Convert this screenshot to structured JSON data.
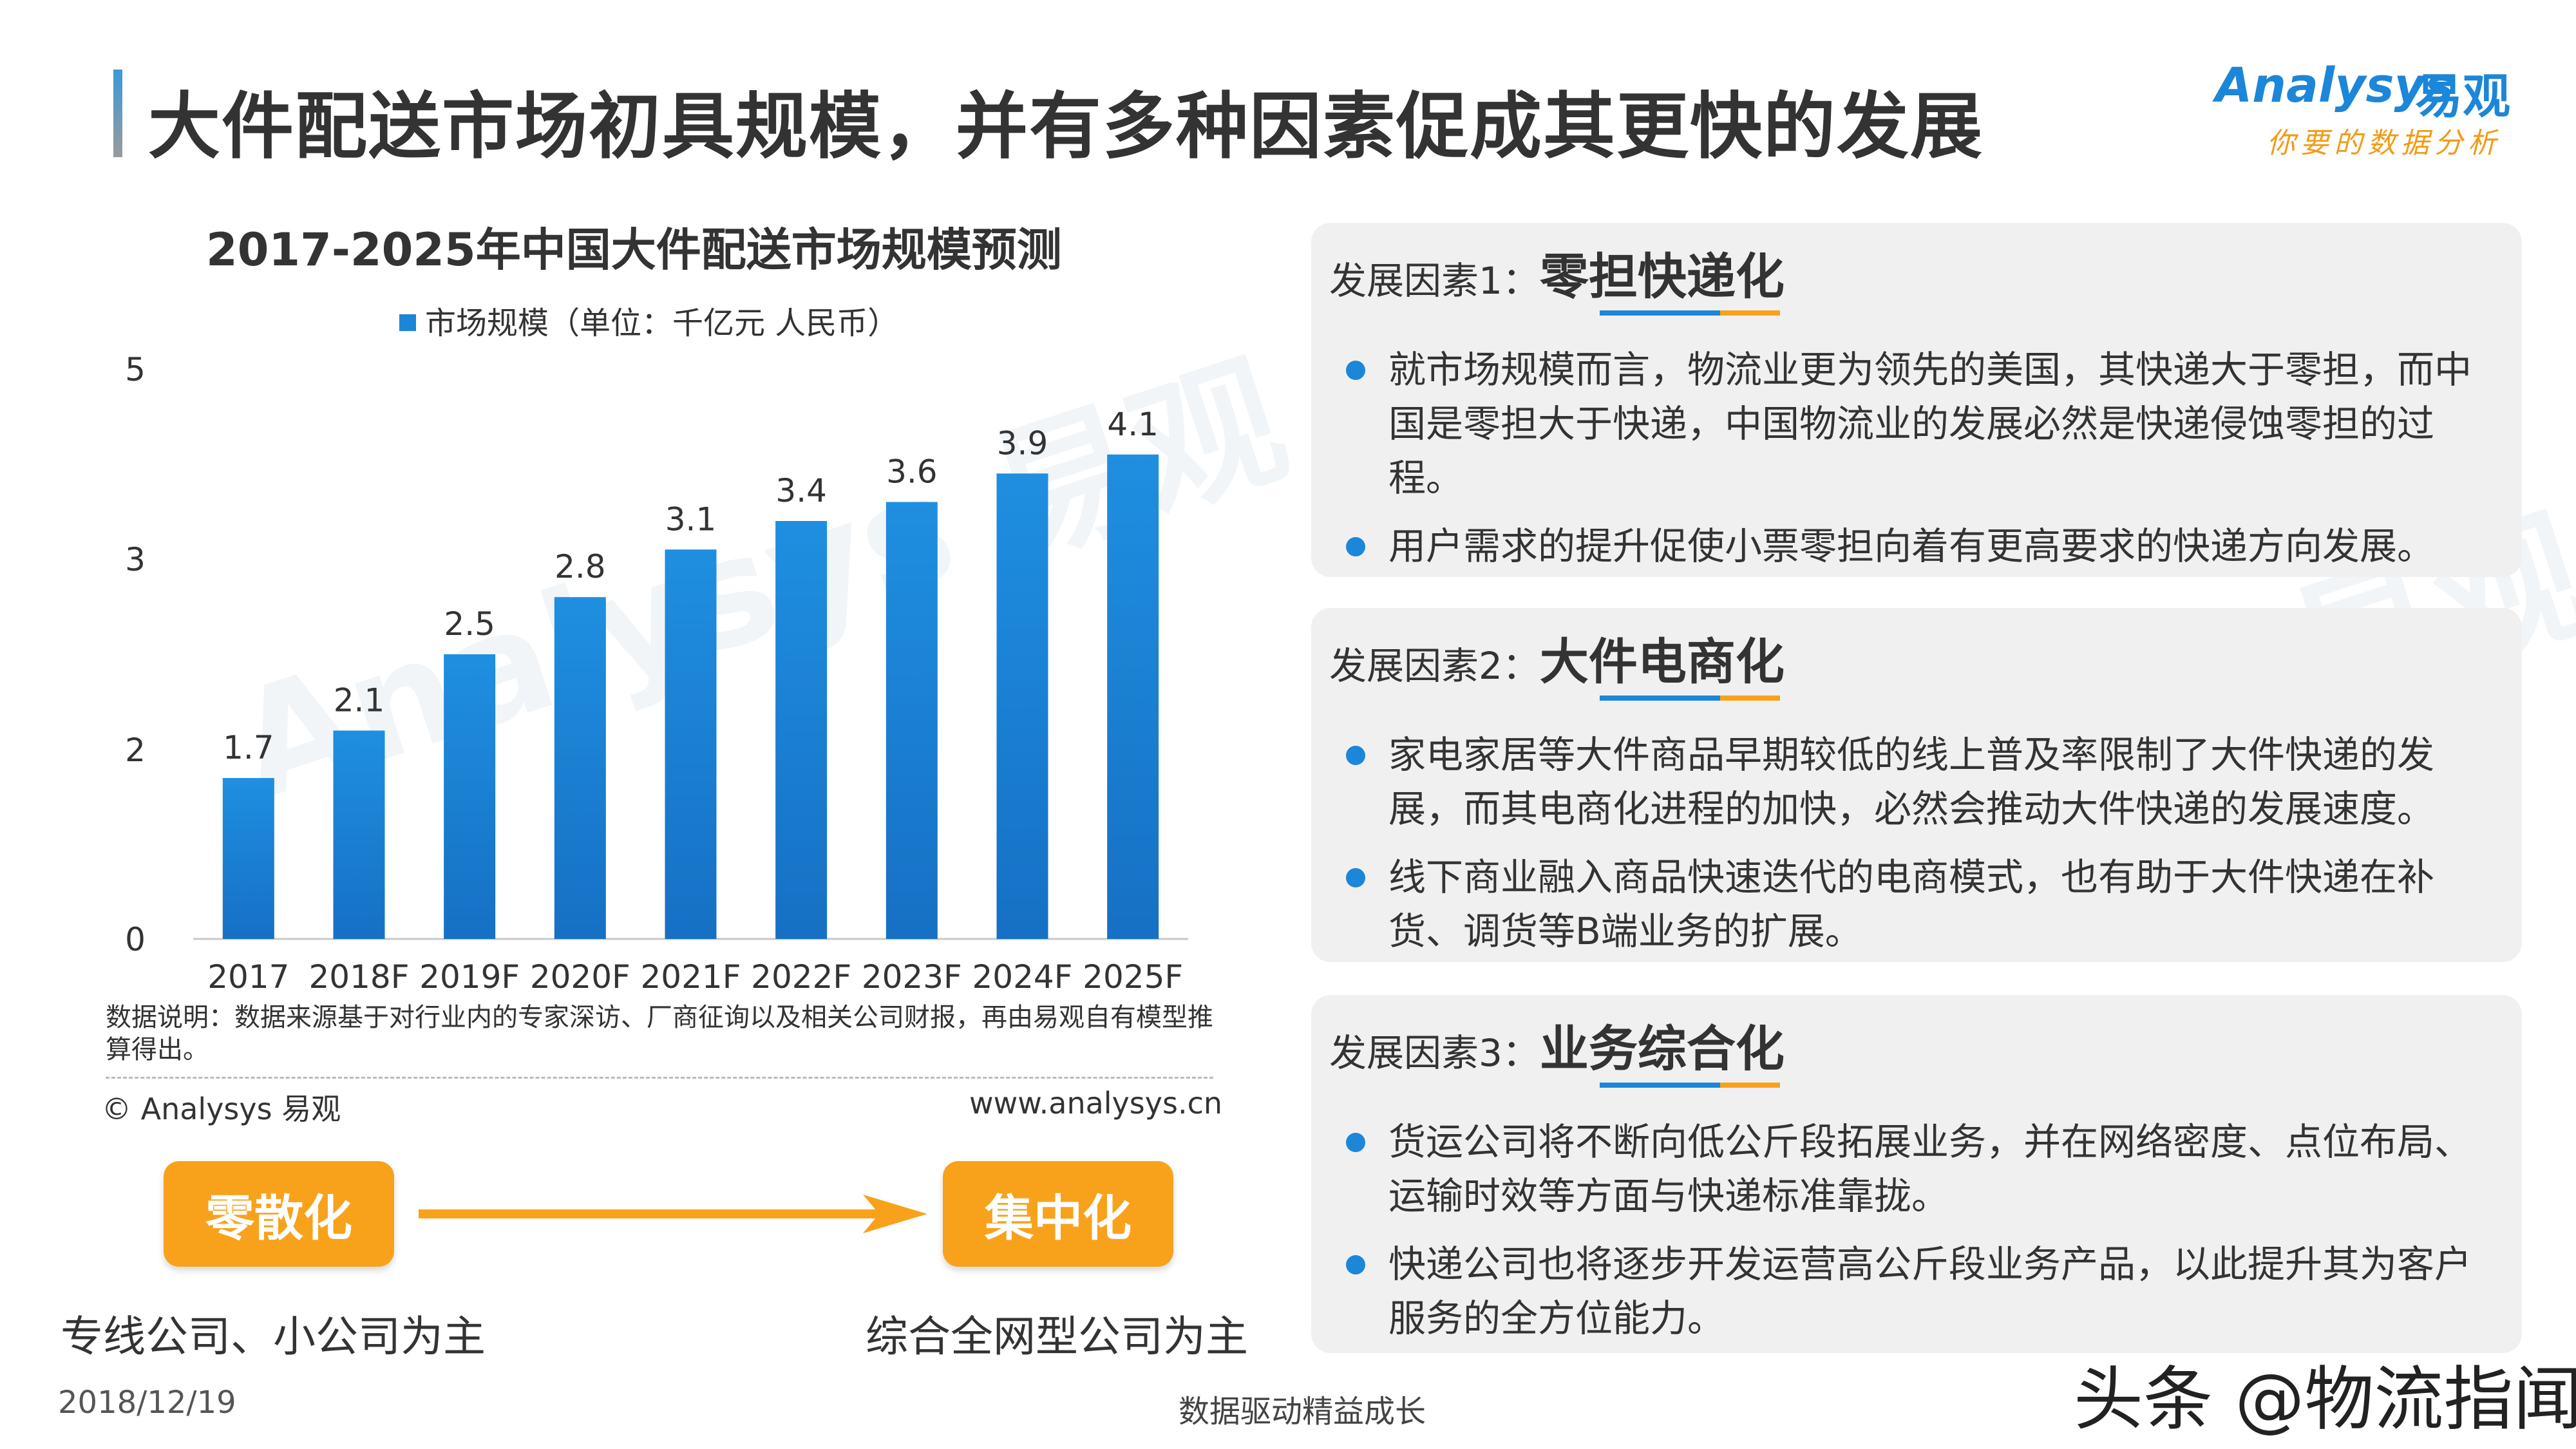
{
  "header": {
    "title": "大件配送市场初具规模，并有多种因素促成其更快的发展",
    "logo_en": "Analysys",
    "logo_cn": "易观",
    "logo_tagline": "你要的数据分析"
  },
  "chart_data": {
    "type": "bar",
    "title": "2017-2025年中国大件配送市场规模预测",
    "legend": [
      "市场规模（单位：千亿元 人民币）"
    ],
    "categories": [
      "2017",
      "2018F",
      "2019F",
      "2020F",
      "2021F",
      "2022F",
      "2023F",
      "2024F",
      "2025F"
    ],
    "series": [
      {
        "name": "市场规模（单位：千亿元 人民币）",
        "values": [
          1.7,
          2.1,
          2.5,
          2.8,
          3.1,
          3.4,
          3.6,
          3.9,
          4.1
        ]
      }
    ],
    "value_labels": [
      "1.7",
      "2.1",
      "2.5",
      "2.8",
      "3.1",
      "3.4",
      "3.6",
      "3.9",
      "4.1"
    ],
    "y_ticks": [
      0,
      2,
      3,
      5
    ],
    "y_tick_labels": [
      "0",
      "2",
      "3",
      "5"
    ],
    "bar_color": "#1c86d8",
    "grid": false,
    "legend_position": "top"
  },
  "chart_notes": {
    "note": "数据说明：数据来源基于对行业内的专家深访、厂商征询以及相关公司财报，再由易观自有模型推算得出。",
    "copyright": "© Analysys 易观",
    "website": "www.analysys.cn"
  },
  "transition": {
    "from_label": "零散化",
    "to_label": "集中化",
    "from_desc": "专线公司、小公司为主",
    "to_desc": "综合全网型公司为主",
    "accent": "#f8a21c"
  },
  "factors": [
    {
      "lead": "发展因素1：",
      "key": "零担快递化",
      "bullets": [
        "就市场规模而言，物流业更为领先的美国，其快递大于零担，而中国是零担大于快递，中国物流业的发展必然是快递侵蚀零担的过程。",
        "用户需求的提升促使小票零担向着有更高要求的快递方向发展。"
      ]
    },
    {
      "lead": "发展因素2：",
      "key": "大件电商化",
      "bullets": [
        "家电家居等大件商品早期较低的线上普及率限制了大件快递的发展，而其电商化进程的加快，必然会推动大件快递的发展速度。",
        "线下商业融入商品快速迭代的电商模式，也有助于大件快递在补货、调货等B端业务的扩展。"
      ]
    },
    {
      "lead": "发展因素3：",
      "key": "业务综合化",
      "bullets": [
        "货运公司将不断向低公斤段拓展业务，并在网络密度、点位布局、运输时效等方面与快递标准靠拢。",
        "快递公司也将逐步开发运营高公斤段业务产品，以此提升其为客户服务的全方位能力。"
      ]
    }
  ],
  "factor_underline_colors": [
    "#1c86d8",
    "#1c86d8",
    "#f8a21c"
  ],
  "footer": {
    "date": "2018/12/19",
    "slogan": "数据驱动精益成长",
    "brand": "头条 @物流指闻"
  }
}
